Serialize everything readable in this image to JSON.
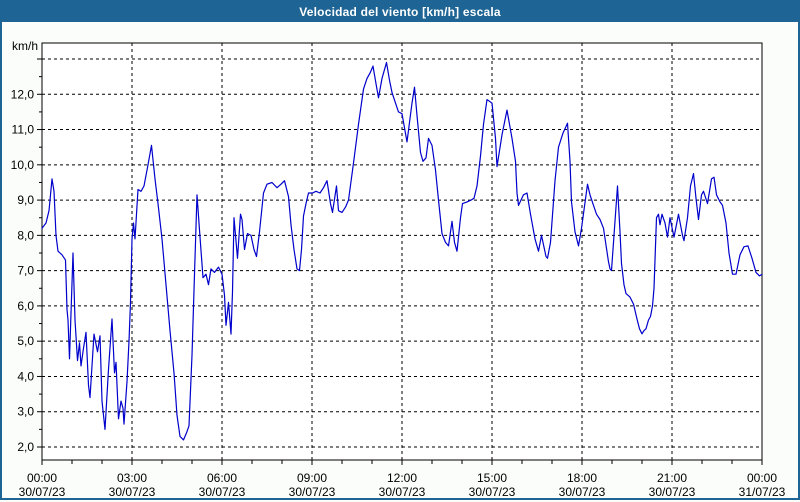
{
  "title": "Velocidad del viento [km/h] escala",
  "colors": {
    "accent": "#1E6494",
    "line": "#0000CC",
    "background": "#FBFDFA",
    "plot_background": "#FFFFFF",
    "grid": "#000000",
    "text": "#000000"
  },
  "y_axis": {
    "unit_label": "km/h",
    "tick_labels": [
      "2,0",
      "3,0",
      "4,0",
      "5,0",
      "6,0",
      "7,0",
      "8,0",
      "9,0",
      "10,0",
      "11,0",
      "12,0"
    ],
    "tick_values": [
      2,
      3,
      4,
      5,
      6,
      7,
      8,
      9,
      10,
      11,
      12
    ]
  },
  "x_axis": {
    "ticks": [
      {
        "time": "00:00",
        "date": "30/07/23",
        "hour": 0
      },
      {
        "time": "03:00",
        "date": "30/07/23",
        "hour": 3
      },
      {
        "time": "06:00",
        "date": "30/07/23",
        "hour": 6
      },
      {
        "time": "09:00",
        "date": "30/07/23",
        "hour": 9
      },
      {
        "time": "12:00",
        "date": "30/07/23",
        "hour": 12
      },
      {
        "time": "15:00",
        "date": "30/07/23",
        "hour": 15
      },
      {
        "time": "18:00",
        "date": "30/07/23",
        "hour": 18
      },
      {
        "time": "21:00",
        "date": "30/07/23",
        "hour": 21
      },
      {
        "time": "00:00",
        "date": "31/07/23",
        "hour": 24
      }
    ]
  },
  "chart_data": {
    "type": "line",
    "title": "Velocidad del viento [km/h] escala",
    "xlabel": "",
    "ylabel": "km/h",
    "ylim": [
      2,
      13
    ],
    "xlim_minutes": [
      0,
      1440
    ],
    "x_unit": "minutes since 30/07/23 00:00",
    "grid": true,
    "legend": false,
    "series": [
      {
        "name": "wind_speed_kmh",
        "points": [
          [
            0,
            8.2
          ],
          [
            8,
            8.35
          ],
          [
            14,
            8.7
          ],
          [
            20,
            9.6
          ],
          [
            24,
            9.25
          ],
          [
            28,
            8.0
          ],
          [
            32,
            7.55
          ],
          [
            40,
            7.45
          ],
          [
            47,
            7.3
          ],
          [
            50,
            5.9
          ],
          [
            52,
            5.6
          ],
          [
            55,
            4.5
          ],
          [
            62,
            7.5
          ],
          [
            66,
            5.6
          ],
          [
            71,
            4.45
          ],
          [
            75,
            4.95
          ],
          [
            78,
            4.3
          ],
          [
            83,
            4.8
          ],
          [
            88,
            5.25
          ],
          [
            93,
            3.75
          ],
          [
            96,
            3.4
          ],
          [
            104,
            5.2
          ],
          [
            111,
            4.7
          ],
          [
            116,
            5.15
          ],
          [
            120,
            3.3
          ],
          [
            126,
            2.5
          ],
          [
            133,
            4.2
          ],
          [
            140,
            5.63
          ],
          [
            145,
            4.1
          ],
          [
            148,
            4.4
          ],
          [
            153,
            2.8
          ],
          [
            158,
            3.3
          ],
          [
            162,
            3.1
          ],
          [
            164,
            2.65
          ],
          [
            170,
            3.85
          ],
          [
            174,
            5.0
          ],
          [
            177,
            6.1
          ],
          [
            180,
            7.9
          ],
          [
            183,
            8.35
          ],
          [
            186,
            7.9
          ],
          [
            192,
            9.3
          ],
          [
            198,
            9.25
          ],
          [
            204,
            9.4
          ],
          [
            212,
            10.0
          ],
          [
            219,
            10.55
          ],
          [
            226,
            9.6
          ],
          [
            232,
            8.9
          ],
          [
            240,
            7.9
          ],
          [
            248,
            6.6
          ],
          [
            256,
            5.3
          ],
          [
            264,
            4.1
          ],
          [
            270,
            2.9
          ],
          [
            276,
            2.3
          ],
          [
            283,
            2.2
          ],
          [
            289,
            2.4
          ],
          [
            294,
            2.6
          ],
          [
            300,
            4.6
          ],
          [
            305,
            6.9
          ],
          [
            310,
            9.15
          ],
          [
            315,
            8.15
          ],
          [
            322,
            6.8
          ],
          [
            328,
            6.9
          ],
          [
            333,
            6.6
          ],
          [
            338,
            7.05
          ],
          [
            345,
            6.95
          ],
          [
            353,
            7.1
          ],
          [
            360,
            6.9
          ],
          [
            365,
            6.3
          ],
          [
            368,
            5.45
          ],
          [
            373,
            6.1
          ],
          [
            378,
            5.2
          ],
          [
            381,
            6.4
          ],
          [
            384,
            8.5
          ],
          [
            391,
            7.35
          ],
          [
            397,
            8.6
          ],
          [
            400,
            8.45
          ],
          [
            405,
            7.6
          ],
          [
            411,
            8.05
          ],
          [
            418,
            8.0
          ],
          [
            424,
            7.6
          ],
          [
            429,
            7.4
          ],
          [
            435,
            8.1
          ],
          [
            443,
            9.2
          ],
          [
            450,
            9.45
          ],
          [
            460,
            9.5
          ],
          [
            470,
            9.35
          ],
          [
            478,
            9.45
          ],
          [
            485,
            9.55
          ],
          [
            493,
            9.1
          ],
          [
            498,
            8.3
          ],
          [
            504,
            7.6
          ],
          [
            510,
            7.05
          ],
          [
            515,
            7.0
          ],
          [
            519,
            7.6
          ],
          [
            523,
            8.55
          ],
          [
            528,
            8.9
          ],
          [
            533,
            9.2
          ],
          [
            541,
            9.2
          ],
          [
            548,
            9.25
          ],
          [
            556,
            9.2
          ],
          [
            563,
            9.35
          ],
          [
            570,
            9.55
          ],
          [
            577,
            8.9
          ],
          [
            581,
            8.65
          ],
          [
            589,
            9.4
          ],
          [
            593,
            8.7
          ],
          [
            600,
            8.65
          ],
          [
            607,
            8.8
          ],
          [
            613,
            9.0
          ],
          [
            623,
            10.05
          ],
          [
            633,
            11.15
          ],
          [
            643,
            12.15
          ],
          [
            650,
            12.45
          ],
          [
            656,
            12.6
          ],
          [
            662,
            12.8
          ],
          [
            668,
            12.3
          ],
          [
            673,
            11.9
          ],
          [
            680,
            12.45
          ],
          [
            689,
            12.9
          ],
          [
            695,
            12.4
          ],
          [
            700,
            12.05
          ],
          [
            707,
            11.75
          ],
          [
            713,
            11.5
          ],
          [
            720,
            11.45
          ],
          [
            725,
            11.05
          ],
          [
            730,
            10.65
          ],
          [
            740,
            11.75
          ],
          [
            745,
            12.2
          ],
          [
            750,
            11.4
          ],
          [
            757,
            10.35
          ],
          [
            762,
            10.1
          ],
          [
            768,
            10.2
          ],
          [
            773,
            10.75
          ],
          [
            780,
            10.55
          ],
          [
            787,
            9.85
          ],
          [
            793,
            9.0
          ],
          [
            800,
            8.05
          ],
          [
            807,
            7.8
          ],
          [
            813,
            7.7
          ],
          [
            820,
            8.4
          ],
          [
            825,
            7.8
          ],
          [
            830,
            7.55
          ],
          [
            837,
            8.5
          ],
          [
            841,
            8.9
          ],
          [
            850,
            8.95
          ],
          [
            858,
            9.0
          ],
          [
            864,
            9.05
          ],
          [
            870,
            9.4
          ],
          [
            877,
            10.25
          ],
          [
            883,
            11.15
          ],
          [
            890,
            11.85
          ],
          [
            895,
            11.8
          ],
          [
            900,
            11.75
          ],
          [
            907,
            10.75
          ],
          [
            910,
            9.95
          ],
          [
            920,
            10.85
          ],
          [
            930,
            11.55
          ],
          [
            940,
            10.75
          ],
          [
            947,
            10.1
          ],
          [
            950,
            9.2
          ],
          [
            953,
            8.85
          ],
          [
            963,
            9.15
          ],
          [
            970,
            9.2
          ],
          [
            977,
            8.6
          ],
          [
            986,
            7.9
          ],
          [
            993,
            7.55
          ],
          [
            999,
            8.0
          ],
          [
            1008,
            7.4
          ],
          [
            1011,
            7.35
          ],
          [
            1017,
            7.8
          ],
          [
            1026,
            9.55
          ],
          [
            1033,
            10.5
          ],
          [
            1042,
            10.9
          ],
          [
            1051,
            11.18
          ],
          [
            1056,
            10.1
          ],
          [
            1059,
            8.95
          ],
          [
            1066,
            8.1
          ],
          [
            1073,
            7.7
          ],
          [
            1079,
            8.2
          ],
          [
            1091,
            9.45
          ],
          [
            1096,
            9.15
          ],
          [
            1103,
            8.85
          ],
          [
            1109,
            8.6
          ],
          [
            1116,
            8.45
          ],
          [
            1123,
            8.2
          ],
          [
            1133,
            7.25
          ],
          [
            1136,
            7.05
          ],
          [
            1139,
            7.0
          ],
          [
            1151,
            9.4
          ],
          [
            1156,
            8.1
          ],
          [
            1159,
            7.2
          ],
          [
            1164,
            6.6
          ],
          [
            1168,
            6.35
          ],
          [
            1176,
            6.25
          ],
          [
            1183,
            6.05
          ],
          [
            1190,
            5.63
          ],
          [
            1195,
            5.35
          ],
          [
            1200,
            5.21
          ],
          [
            1204,
            5.3
          ],
          [
            1208,
            5.35
          ],
          [
            1213,
            5.6
          ],
          [
            1217,
            5.7
          ],
          [
            1221,
            6.0
          ],
          [
            1224,
            6.5
          ],
          [
            1229,
            8.5
          ],
          [
            1233,
            8.6
          ],
          [
            1236,
            8.3
          ],
          [
            1240,
            8.6
          ],
          [
            1246,
            8.35
          ],
          [
            1251,
            7.95
          ],
          [
            1256,
            8.5
          ],
          [
            1264,
            7.95
          ],
          [
            1273,
            8.6
          ],
          [
            1281,
            8.0
          ],
          [
            1284,
            7.85
          ],
          [
            1291,
            8.5
          ],
          [
            1297,
            9.4
          ],
          [
            1303,
            9.75
          ],
          [
            1308,
            9.05
          ],
          [
            1313,
            8.45
          ],
          [
            1319,
            9.15
          ],
          [
            1323,
            9.25
          ],
          [
            1331,
            8.9
          ],
          [
            1339,
            9.6
          ],
          [
            1344,
            9.65
          ],
          [
            1349,
            9.15
          ],
          [
            1356,
            8.95
          ],
          [
            1361,
            8.85
          ],
          [
            1368,
            8.35
          ],
          [
            1374,
            7.5
          ],
          [
            1381,
            6.9
          ],
          [
            1388,
            6.9
          ],
          [
            1396,
            7.45
          ],
          [
            1404,
            7.68
          ],
          [
            1412,
            7.7
          ],
          [
            1420,
            7.35
          ],
          [
            1428,
            6.95
          ],
          [
            1435,
            6.85
          ],
          [
            1440,
            6.9
          ]
        ]
      }
    ]
  }
}
